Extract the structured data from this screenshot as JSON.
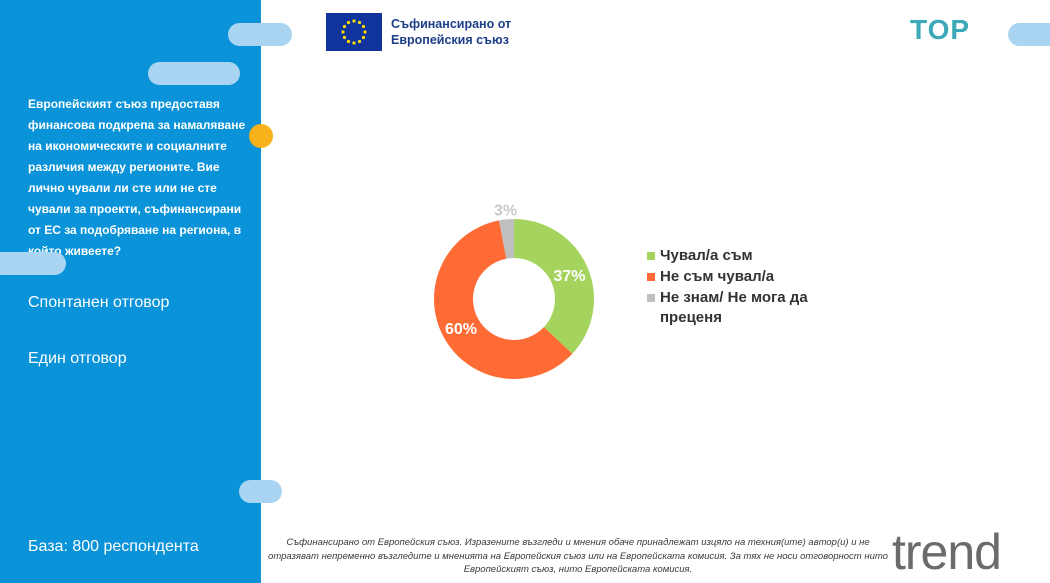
{
  "sidebar": {
    "question": "Европейският съюз предоставя финансова подкрепа за намаляване на икономическите и социалните различия между регионите. Вие лично чували ли сте или не сте чували за проекти, съфинансирани от ЕС за подобряване на региона, в който живеете?",
    "note_1": "Спонтанен отговор",
    "note_2": "Един отговор",
    "base": "База: 800 респондента"
  },
  "header": {
    "eu_line_1": "Съфинансирано от",
    "eu_line_2": "Европейския съюз",
    "logo_text": "TOP"
  },
  "footer": {
    "disclaimer": "Съфинансирано от Европейския съюз. Изразените възгледи и мнения обаче принадлежат изцяло на техния(ите) автор(и) и не отразяват непременно възгледите и мненията на Европейския съюз или на Европейската комисия. За тях не носи отговорност нито Европейският съюз, нито Европейската комисия.",
    "brand": "trend"
  },
  "colors": {
    "sidebar": "#0a93d9",
    "accent_dot": "#f9b21b",
    "pill": "#a9d5f3"
  },
  "chart_data": {
    "type": "pie",
    "variant": "donut",
    "categories": [
      "Чувал/а съм",
      "Не съм чувал/а",
      "Не знам/ Не мога да преценя"
    ],
    "values": [
      37,
      60,
      3
    ],
    "data_labels": [
      "37%",
      "60%",
      "3%"
    ],
    "colors": [
      "#a5d45e",
      "#ff6b35",
      "#bfbfbf"
    ],
    "legend_position": "right"
  }
}
